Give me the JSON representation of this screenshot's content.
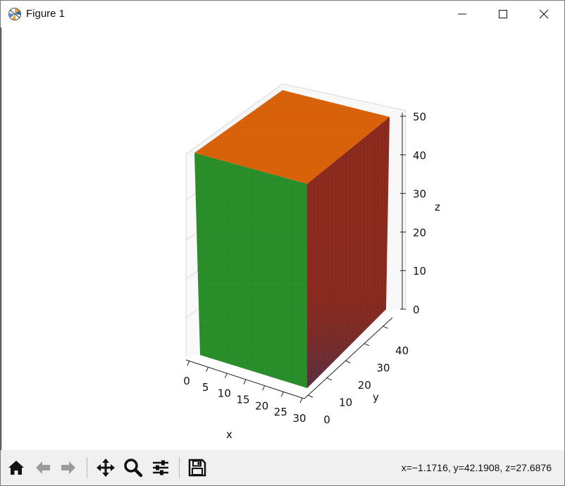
{
  "window": {
    "title": "Figure 1",
    "controls": [
      "minimize-icon",
      "maximize-icon",
      "close-icon"
    ]
  },
  "toolbar": {
    "buttons": [
      "home-icon",
      "back-arrow-icon",
      "forward-arrow-icon",
      "pan-icon",
      "zoom-icon",
      "configure-subplots-icon",
      "save-icon"
    ],
    "status": "x=−1.1716, y=42.1908, z=27.6876"
  },
  "chart_data": {
    "type": "3d-surface-box",
    "title": "",
    "xlabel": "x",
    "ylabel": "y",
    "zlabel": "z",
    "xlim": [
      0,
      30
    ],
    "ylim": [
      0,
      45
    ],
    "zlim": [
      0,
      50
    ],
    "xticks": [
      "0",
      "5",
      "10",
      "15",
      "20",
      "25",
      "30"
    ],
    "yticks": [
      "0",
      "10",
      "20",
      "30",
      "40"
    ],
    "zticks": [
      "0",
      "10",
      "20",
      "30",
      "40",
      "50"
    ],
    "box": {
      "x": [
        0,
        30
      ],
      "y": [
        0,
        45
      ],
      "z": [
        0,
        50
      ]
    },
    "faces": [
      {
        "name": "front",
        "color": "#2a8f2a"
      },
      {
        "name": "side",
        "color": "#8a2a1e"
      },
      {
        "name": "top",
        "color": "#d9620a"
      }
    ],
    "grid": true
  }
}
